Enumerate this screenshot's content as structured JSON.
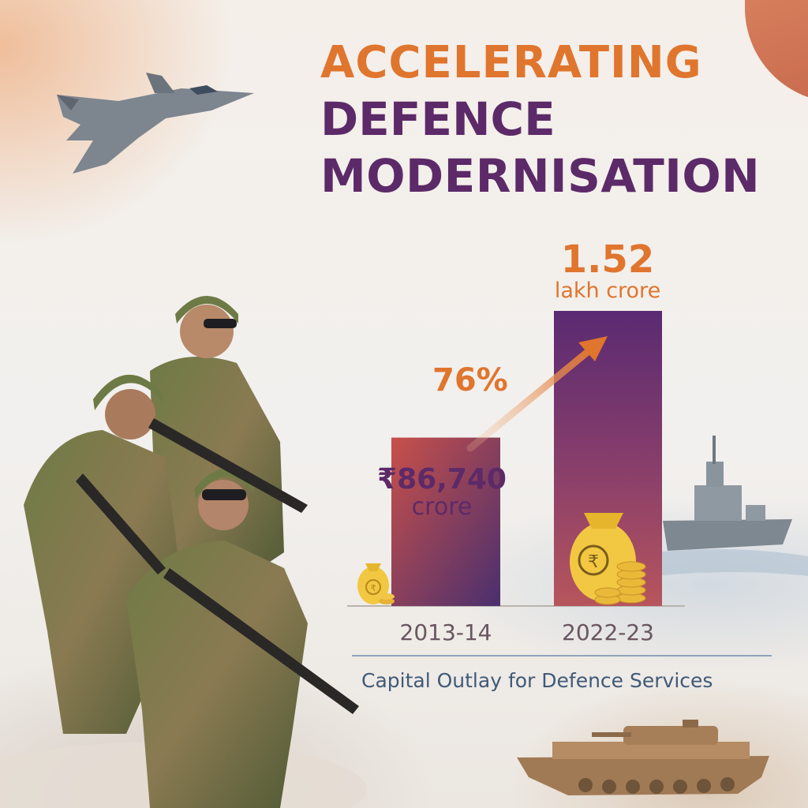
{
  "title": {
    "line1": "ACCELERATING",
    "line2": "DEFENCE",
    "line3": "MODERNISATION"
  },
  "colors": {
    "orange": "#e0752e",
    "purple": "#5c2a68",
    "caption_blue": "#3f5a78"
  },
  "labels": {
    "bar1_value": "₹86,740",
    "bar1_unit": "crore",
    "bar2_value": "1.52",
    "bar2_unit": "lakh crore",
    "growth": "76%",
    "caption": "Capital Outlay for Defence Services"
  },
  "chart_data": {
    "type": "bar",
    "categories": [
      "2013-14",
      "2022-23"
    ],
    "values": [
      86740,
      152000
    ],
    "value_unit": "₹ crore",
    "data_labels": [
      "₹86,740 crore",
      "1.52 lakh crore"
    ],
    "annotation": "76%",
    "title": "Capital Outlay for Defence Services",
    "xlabel": "",
    "ylabel": "",
    "ylim": [
      0,
      152000
    ],
    "grid": false,
    "legend": "none"
  },
  "icons": {
    "jet": "fighter-jet-icon",
    "soldiers": "soldiers-illustration",
    "ship": "warship-icon",
    "tank": "tank-icon",
    "money_bag": "rupee-money-bag-icon",
    "arrow": "growth-arrow-icon"
  }
}
